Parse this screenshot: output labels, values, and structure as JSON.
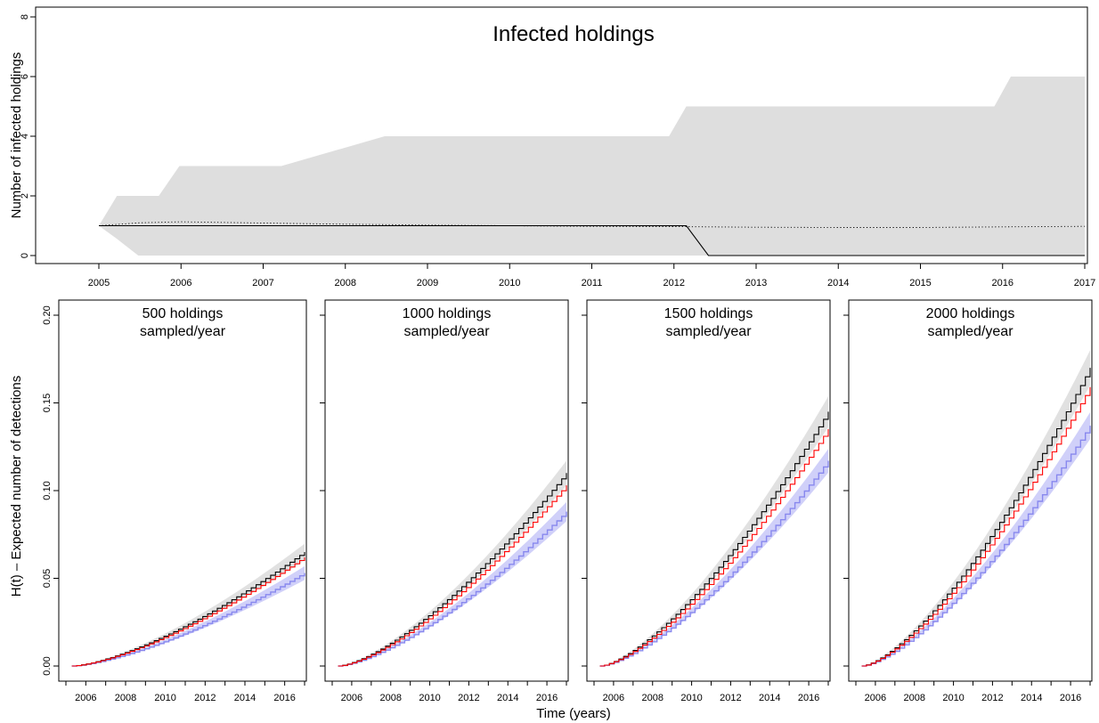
{
  "colors": {
    "band_grey": "#dedede",
    "ci_grey": "#dcdcdc",
    "ci_blue": "#c8c8f8",
    "black_line": "#000000",
    "red_line": "#ff0000",
    "blue_line": "#8888ee"
  },
  "chart_data": [
    {
      "type": "area",
      "title": "Infected holdings",
      "xlabel": "",
      "ylabel": "Number of infected holdings",
      "xlim": [
        2005,
        2017
      ],
      "ylim": [
        0,
        8
      ],
      "x_ticks": [
        "2005",
        "2006",
        "2007",
        "2008",
        "2009",
        "2010",
        "2011",
        "2012",
        "2013",
        "2014",
        "2015",
        "2016",
        "2017"
      ],
      "y_ticks": [
        "0",
        "2",
        "4",
        "6",
        "8"
      ],
      "grid": false,
      "series": [
        {
          "role": "upper-envelope",
          "x": [
            2005,
            2005.22,
            2005.73,
            2005.98,
            2007.22,
            2008.48,
            2011.94,
            2012.15,
            2015.9,
            2016.1,
            2017
          ],
          "values": [
            1,
            2,
            2,
            3,
            3,
            4,
            4,
            5,
            5,
            6,
            6
          ]
        },
        {
          "role": "lower-envelope",
          "x": [
            2005,
            2005.2,
            2005.48,
            2017
          ],
          "values": [
            1,
            0.6,
            0,
            0
          ]
        },
        {
          "role": "realization",
          "x": [
            2005,
            2012.15,
            2012.42,
            2017
          ],
          "values": [
            1,
            1,
            0,
            0
          ]
        },
        {
          "role": "mean",
          "x": [
            2005,
            2005.5,
            2006,
            2007,
            2008,
            2009,
            2010,
            2011,
            2012,
            2013,
            2014,
            2015,
            2016,
            2017
          ],
          "values": [
            1,
            1.1,
            1.13,
            1.09,
            1.05,
            1.02,
            1.0,
            0.98,
            0.97,
            0.95,
            0.94,
            0.94,
            0.96,
            0.98
          ]
        }
      ]
    },
    {
      "type": "line",
      "title": "500 holdings\nsampled/year",
      "title_lines": [
        "500 holdings",
        "sampled/year"
      ],
      "xlim": [
        2005,
        2017
      ],
      "ylim": [
        0,
        0.2
      ],
      "x_ticks": [
        "2006",
        "2008",
        "2010",
        "2012",
        "2014",
        "2016"
      ],
      "y_ticks": [
        "0.00",
        "0.05",
        "0.10",
        "0.15",
        "0.20"
      ],
      "final_values": {
        "black": 0.065,
        "red": 0.062,
        "blue": 0.053
      }
    },
    {
      "type": "line",
      "title": "1000 holdings\nsampled/year",
      "title_lines": [
        "1000 holdings",
        "sampled/year"
      ],
      "xlim": [
        2005,
        2017
      ],
      "ylim": [
        0,
        0.2
      ],
      "x_ticks": [
        "2006",
        "2008",
        "2010",
        "2012",
        "2014",
        "2016"
      ],
      "final_values": {
        "black": 0.11,
        "red": 0.103,
        "blue": 0.088
      }
    },
    {
      "type": "line",
      "title": "1500 holdings\nsampled/year",
      "title_lines": [
        "1500 holdings",
        "sampled/year"
      ],
      "xlim": [
        2005,
        2017
      ],
      "ylim": [
        0,
        0.2
      ],
      "x_ticks": [
        "2006",
        "2008",
        "2010",
        "2012",
        "2014",
        "2016"
      ],
      "final_values": {
        "black": 0.145,
        "red": 0.135,
        "blue": 0.117
      }
    },
    {
      "type": "line",
      "title": "2000 holdings\nsampled/year",
      "title_lines": [
        "2000 holdings",
        "sampled/year"
      ],
      "xlim": [
        2005,
        2017
      ],
      "ylim": [
        0,
        0.2
      ],
      "x_ticks": [
        "2006",
        "2008",
        "2010",
        "2012",
        "2014",
        "2016"
      ],
      "final_values": {
        "black": 0.17,
        "red": 0.159,
        "blue": 0.137
      }
    }
  ],
  "shared": {
    "bottom_ylabel": "H(t) – Expected number of detections",
    "bottom_xlabel": "Time (years)"
  }
}
